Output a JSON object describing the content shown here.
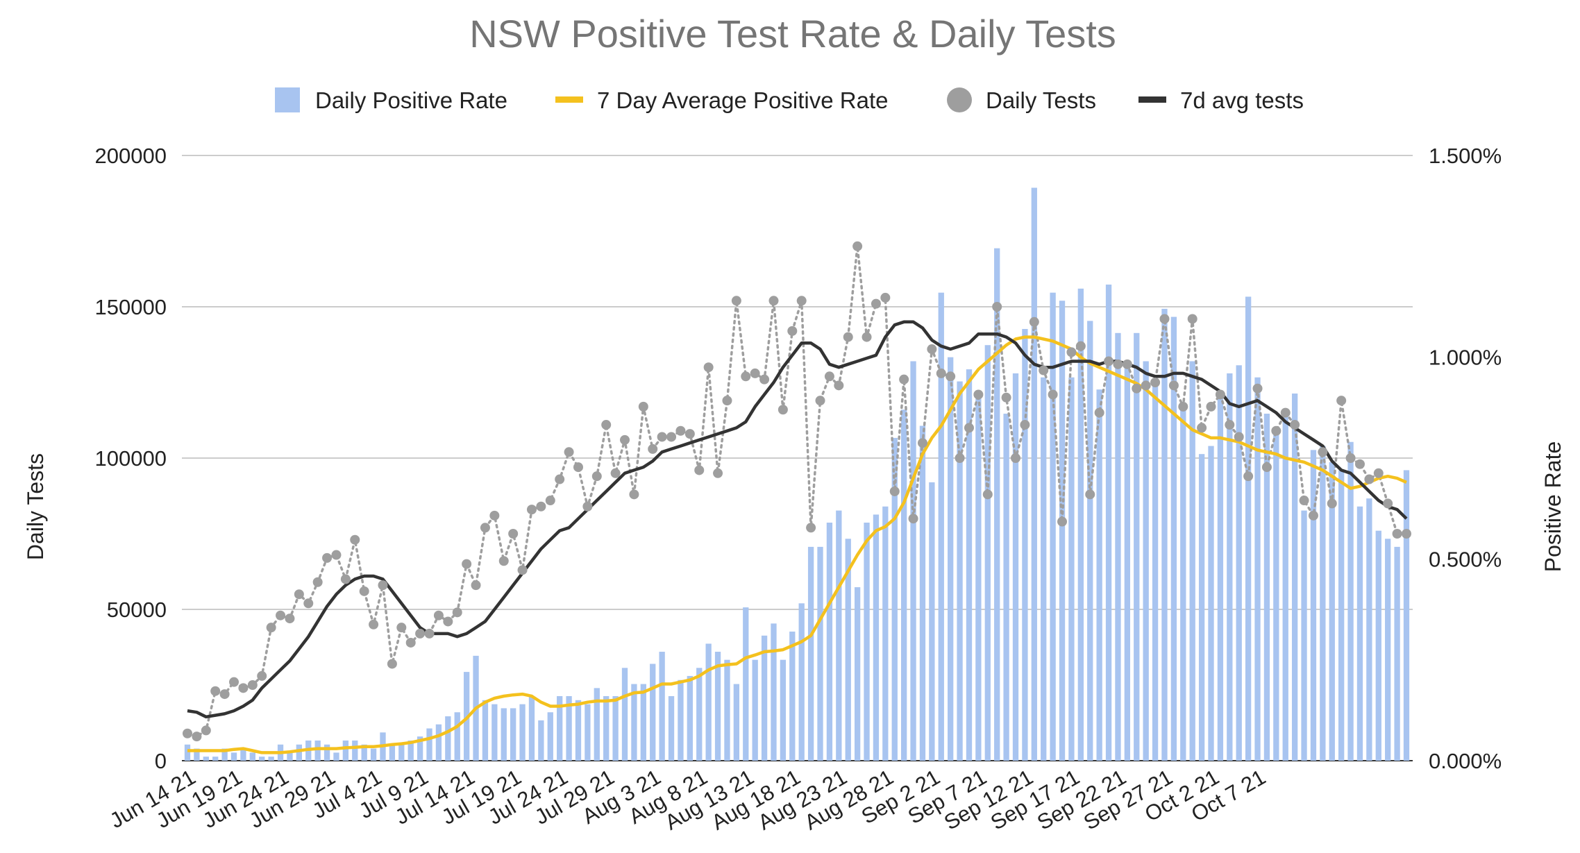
{
  "chart_data": {
    "type": "bar",
    "title": "NSW Positive Test Rate & Daily Tests",
    "ylabel_left": "Daily Tests",
    "ylabel_right": "Positive Rate",
    "ylim_left": [
      0,
      200000
    ],
    "ylim_right": [
      0,
      1.5
    ],
    "left_ticks": [
      "0",
      "50000",
      "100000",
      "150000",
      "200000"
    ],
    "right_ticks": [
      "0.000%",
      "0.500%",
      "1.000%",
      "1.500%"
    ],
    "x_tick_labels": [
      "Jun 14 21",
      "Jun 19 21",
      "Jun 24 21",
      "Jun 29 21",
      "Jul 4 21",
      "Jul 9 21",
      "Jul 14 21",
      "Jul 19 21",
      "Jul 24 21",
      "Jul 29 21",
      "Aug 3 21",
      "Aug 8 21",
      "Aug 13 21",
      "Aug 18 21",
      "Aug 23 21",
      "Aug 28 21",
      "Sep 2 21",
      "Sep 7 21",
      "Sep 12 21",
      "Sep 17 21",
      "Sep 22 21",
      "Sep 27 21",
      "Oct 2 21",
      "Oct 7 21"
    ],
    "tick_every": 5,
    "legend": [
      "Daily Positive Rate",
      "7 Day Average Positive Rate",
      "Daily Tests",
      "7d avg tests"
    ],
    "colors": {
      "bars": "#a8c4f0",
      "avg_rate": "#f4c11e",
      "daily_tests": "#9e9e9e",
      "avg_tests": "#333333",
      "title": "#757575",
      "grid": "#cccccc"
    },
    "series": [
      {
        "name": "Daily Positive Rate",
        "axis": "right",
        "unit": "%",
        "values": [
          0.04,
          0.03,
          0.01,
          0.01,
          0.03,
          0.02,
          0.03,
          0.02,
          0.01,
          0.01,
          0.04,
          0.02,
          0.04,
          0.05,
          0.05,
          0.04,
          0.02,
          0.05,
          0.05,
          0.04,
          0.03,
          0.07,
          0.04,
          0.04,
          0.05,
          0.06,
          0.08,
          0.09,
          0.11,
          0.12,
          0.22,
          0.26,
          0.15,
          0.14,
          0.13,
          0.13,
          0.14,
          0.16,
          0.1,
          0.12,
          0.16,
          0.16,
          0.15,
          0.14,
          0.18,
          0.16,
          0.16,
          0.23,
          0.19,
          0.19,
          0.24,
          0.27,
          0.16,
          0.2,
          0.21,
          0.23,
          0.29,
          0.27,
          0.25,
          0.19,
          0.38,
          0.25,
          0.31,
          0.34,
          0.25,
          0.32,
          0.39,
          0.53,
          0.53,
          0.59,
          0.62,
          0.55,
          0.43,
          0.59,
          0.61,
          0.63,
          0.8,
          0.87,
          0.99,
          0.83,
          0.69,
          1.16,
          1.0,
          0.94,
          0.97,
          0.9,
          1.03,
          1.27,
          0.86,
          0.96,
          1.07,
          1.42,
          0.95,
          1.16,
          1.14,
          0.95,
          1.17,
          1.09,
          0.92,
          1.18,
          1.06,
          0.98,
          1.06,
          0.99,
          0.93,
          1.12,
          1.1,
          0.88,
          0.99,
          0.76,
          0.78,
          0.91,
          0.96,
          0.98,
          1.15,
          0.95,
          0.86,
          0.81,
          0.86,
          0.91,
          0.62,
          0.77,
          0.78,
          0.74,
          0.72,
          0.79,
          0.63,
          0.65,
          0.57,
          0.55,
          0.53,
          0.72
        ]
      },
      {
        "name": "7 Day Average Positive Rate",
        "axis": "right",
        "unit": "%",
        "values": [
          0.025,
          0.025,
          0.025,
          0.025,
          0.025,
          0.028,
          0.03,
          0.025,
          0.02,
          0.02,
          0.02,
          0.022,
          0.025,
          0.028,
          0.03,
          0.03,
          0.03,
          0.032,
          0.033,
          0.035,
          0.035,
          0.037,
          0.04,
          0.042,
          0.045,
          0.05,
          0.055,
          0.062,
          0.072,
          0.085,
          0.105,
          0.13,
          0.145,
          0.155,
          0.16,
          0.163,
          0.165,
          0.16,
          0.145,
          0.135,
          0.135,
          0.138,
          0.14,
          0.145,
          0.148,
          0.148,
          0.15,
          0.16,
          0.168,
          0.17,
          0.18,
          0.19,
          0.19,
          0.195,
          0.2,
          0.21,
          0.225,
          0.235,
          0.238,
          0.24,
          0.255,
          0.262,
          0.27,
          0.272,
          0.275,
          0.285,
          0.295,
          0.31,
          0.35,
          0.39,
          0.43,
          0.47,
          0.51,
          0.545,
          0.57,
          0.58,
          0.6,
          0.64,
          0.7,
          0.76,
          0.8,
          0.83,
          0.87,
          0.91,
          0.94,
          0.97,
          0.99,
          1.01,
          1.03,
          1.045,
          1.05,
          1.05,
          1.045,
          1.04,
          1.03,
          1.02,
          1.0,
          0.985,
          0.975,
          0.965,
          0.955,
          0.945,
          0.935,
          0.92,
          0.9,
          0.88,
          0.86,
          0.84,
          0.82,
          0.81,
          0.8,
          0.8,
          0.795,
          0.79,
          0.78,
          0.77,
          0.765,
          0.76,
          0.75,
          0.745,
          0.74,
          0.73,
          0.72,
          0.705,
          0.69,
          0.675,
          0.68,
          0.69,
          0.7,
          0.705,
          0.7,
          0.69
        ]
      },
      {
        "name": "Daily Tests",
        "axis": "left",
        "values": [
          9000,
          8000,
          10000,
          23000,
          22000,
          26000,
          24000,
          25000,
          28000,
          44000,
          48000,
          47000,
          55000,
          52000,
          59000,
          67000,
          68000,
          60000,
          73000,
          56000,
          45000,
          58000,
          32000,
          44000,
          39000,
          42000,
          42000,
          48000,
          46000,
          49000,
          65000,
          58000,
          77000,
          81000,
          66000,
          75000,
          63000,
          83000,
          84000,
          86000,
          93000,
          102000,
          97000,
          84000,
          94000,
          111000,
          95000,
          106000,
          88000,
          117000,
          103000,
          107000,
          107000,
          109000,
          108000,
          96000,
          130000,
          95000,
          119000,
          152000,
          127000,
          128000,
          126000,
          152000,
          116000,
          142000,
          152000,
          77000,
          119000,
          127000,
          124000,
          140000,
          170000,
          140000,
          151000,
          153000,
          89000,
          126000,
          80000,
          105000,
          136000,
          128000,
          127000,
          100000,
          110000,
          121000,
          88000,
          150000,
          120000,
          100000,
          111000,
          145000,
          129000,
          121000,
          79000,
          135000,
          137000,
          88000,
          115000,
          132000,
          131000,
          131000,
          123000,
          124000,
          125000,
          146000,
          124000,
          117000,
          146000,
          110000,
          117000,
          121000,
          111000,
          107000,
          94000,
          123000,
          97000,
          109000,
          115000,
          111000,
          86000,
          81000,
          102000,
          85000,
          119000,
          100000,
          98000,
          93000,
          95000,
          85000,
          75000,
          75000
        ]
      },
      {
        "name": "7d avg tests",
        "axis": "left",
        "values": [
          16500,
          16000,
          14500,
          15000,
          15500,
          16500,
          18000,
          20000,
          24000,
          27000,
          30000,
          33000,
          37000,
          41000,
          46000,
          51000,
          55000,
          58000,
          60000,
          61000,
          61000,
          60000,
          56000,
          52000,
          48000,
          44000,
          42000,
          42000,
          42000,
          41000,
          42000,
          44000,
          46000,
          50000,
          54000,
          58000,
          62000,
          66000,
          70000,
          73000,
          76000,
          77000,
          80000,
          83000,
          86000,
          89000,
          92000,
          95000,
          96000,
          97000,
          99000,
          102000,
          103000,
          104000,
          105000,
          106000,
          107000,
          108000,
          109000,
          110000,
          112000,
          117000,
          121000,
          125000,
          130000,
          134000,
          138000,
          138000,
          136000,
          131000,
          130000,
          131000,
          132000,
          133000,
          134000,
          140000,
          144000,
          145000,
          145000,
          143000,
          139000,
          137000,
          136000,
          137000,
          138000,
          141000,
          141000,
          141000,
          140000,
          138000,
          134000,
          131000,
          130000,
          130000,
          131000,
          132000,
          132000,
          132000,
          131000,
          132000,
          132000,
          131000,
          130000,
          128000,
          127000,
          127000,
          128000,
          128000,
          127000,
          126000,
          124000,
          122000,
          118000,
          117000,
          118000,
          119000,
          117000,
          115000,
          112000,
          110000,
          108000,
          106000,
          104000,
          99000,
          96000,
          95000,
          92000,
          89000,
          86000,
          84000,
          83000,
          80000
        ]
      }
    ]
  }
}
